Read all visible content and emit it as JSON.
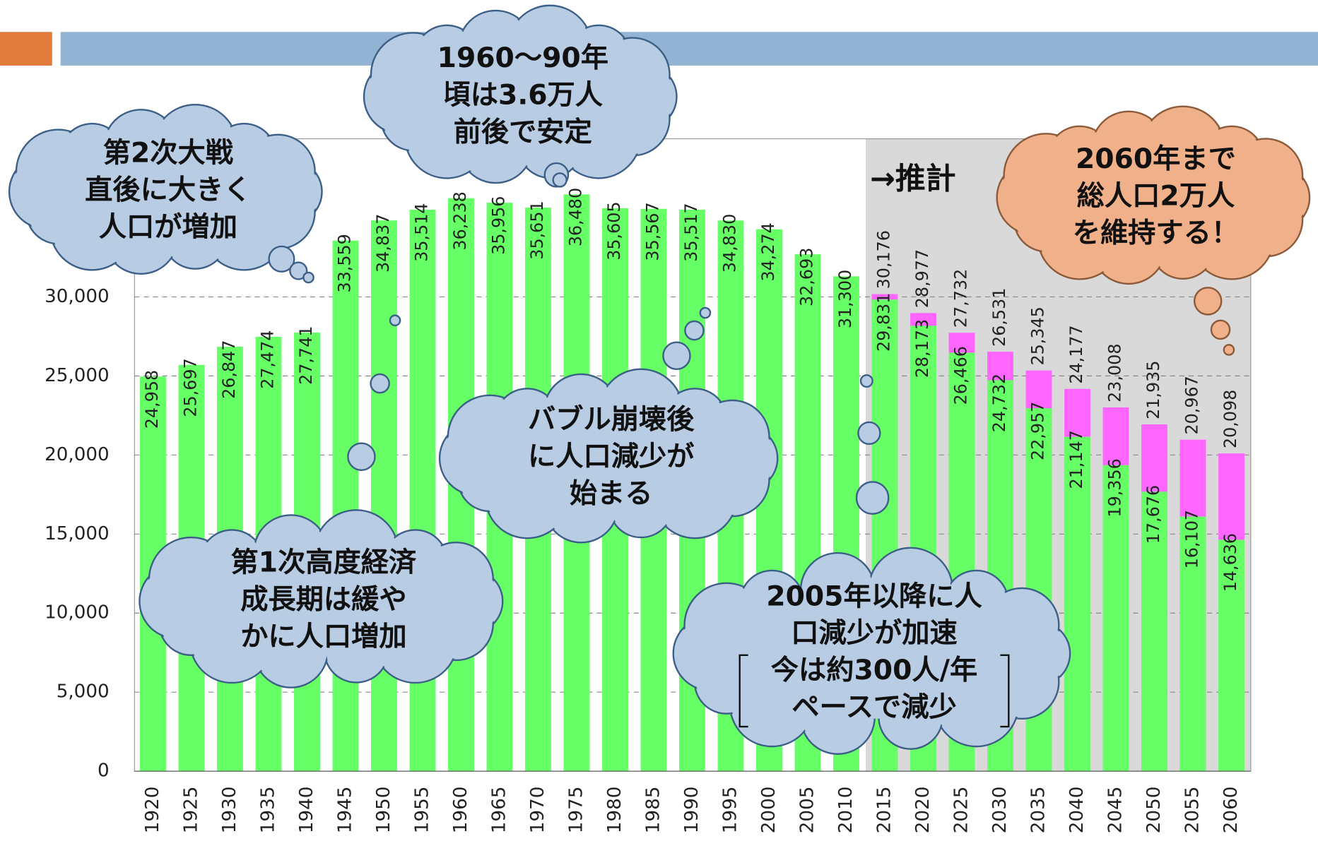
{
  "chart_data": {
    "type": "bar",
    "categories": [
      "1920",
      "1925",
      "1930",
      "1935",
      "1940",
      "1945",
      "1950",
      "1955",
      "1960",
      "1965",
      "1970",
      "1975",
      "1980",
      "1985",
      "1990",
      "1995",
      "2000",
      "2005",
      "2010",
      "2015",
      "2020",
      "2025",
      "2030",
      "2035",
      "2040",
      "2045",
      "2050",
      "2055",
      "2060"
    ],
    "series": [
      {
        "color": "#66ff66",
        "values": [
          24958,
          25697,
          26847,
          27474,
          27741,
          33559,
          34837,
          35514,
          36238,
          35956,
          35651,
          36480,
          35605,
          35567,
          35517,
          34830,
          34274,
          32693,
          31300,
          29831,
          28173,
          26466,
          24732,
          22957,
          21147,
          19356,
          17676,
          16107,
          14636
        ],
        "value_labels": [
          "24,958",
          "25,697",
          "26,847",
          "27,474",
          "27,741",
          "33,559",
          "34,837",
          "35,514",
          "36,238",
          "35,956",
          "35,651",
          "36,480",
          "35,605",
          "35,567",
          "35,517",
          "34,830",
          "34,274",
          "32,693",
          "31,300",
          "29,831",
          "28,173",
          "26,466",
          "24,732",
          "22,957",
          "21,147",
          "19,356",
          "17,676",
          "16,107",
          "14,636"
        ]
      },
      {
        "color": "#ff66ff",
        "values": [
          null,
          null,
          null,
          null,
          null,
          null,
          null,
          null,
          null,
          null,
          null,
          null,
          null,
          null,
          null,
          null,
          null,
          null,
          null,
          30176,
          28977,
          27732,
          26531,
          25345,
          24177,
          23008,
          21935,
          20967,
          20098
        ],
        "value_labels": [
          null,
          null,
          null,
          null,
          null,
          null,
          null,
          null,
          null,
          null,
          null,
          null,
          null,
          null,
          null,
          null,
          null,
          null,
          null,
          "30,176",
          "28,977",
          "27,732",
          "26,531",
          "25,345",
          "24,177",
          "23,008",
          "21,935",
          "20,967",
          "20,098"
        ]
      }
    ],
    "ylim": [
      0,
      40000
    ],
    "yticks": [
      0,
      {
        "value": 5000,
        "label": "5,000"
      },
      {
        "value": 10000,
        "label": "10,000"
      },
      {
        "value": 15000,
        "label": "15,000"
      },
      {
        "value": 20000,
        "label": "20,000"
      },
      {
        "value": 25000,
        "label": "25,000"
      },
      {
        "value": 30000,
        "label": "30,000"
      }
    ],
    "grid": true,
    "projection_label": "→推計",
    "annotations": [
      {
        "lines": [
          "第2次大戦",
          "直後に大きく",
          "人口が増加"
        ]
      },
      {
        "lines": [
          "1960～90年",
          "頃は3.6万人",
          "前後で安定"
        ]
      },
      {
        "lines": [
          "2060年まで",
          "総人口2万人",
          "を維持する！"
        ]
      },
      {
        "lines": [
          "バブル崩壊後",
          "に人口減少が",
          "始まる"
        ]
      },
      {
        "lines": [
          "第1次高度経済",
          "成長期は緩や",
          "かに人口増加"
        ]
      },
      {
        "lines": [
          "2005年以降に人",
          "口減少が加速",
          "今は約300人/年",
          "ペースで減少"
        ]
      }
    ]
  }
}
